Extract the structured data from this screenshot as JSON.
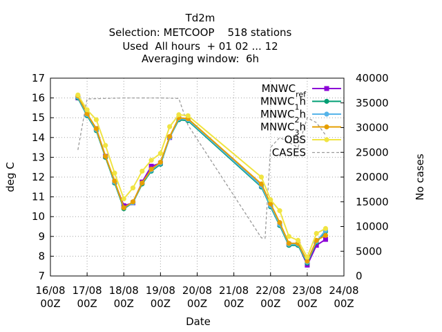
{
  "chart_data": {
    "type": "line",
    "title_lines": [
      "Td2m",
      "Selection: METCOOP    518 stations",
      "Used  All hours  + 01 02 ... 12",
      "Averaging window:  6h"
    ],
    "xlabel": "Date",
    "ylabel": "deg C",
    "y2label": "No cases",
    "x_ticks": [
      {
        "day": 0,
        "label": [
          "16/08",
          "00Z"
        ]
      },
      {
        "day": 1,
        "label": [
          "17/08",
          "00Z"
        ]
      },
      {
        "day": 2,
        "label": [
          "18/08",
          "00Z"
        ]
      },
      {
        "day": 3,
        "label": [
          "19/08",
          "00Z"
        ]
      },
      {
        "day": 4,
        "label": [
          "20/08",
          "00Z"
        ]
      },
      {
        "day": 5,
        "label": [
          "21/08",
          "00Z"
        ]
      },
      {
        "day": 6,
        "label": [
          "22/08",
          "00Z"
        ]
      },
      {
        "day": 7,
        "label": [
          "23/08",
          "00Z"
        ]
      },
      {
        "day": 8,
        "label": [
          "24/08",
          "00Z"
        ]
      }
    ],
    "xlim": [
      0,
      8
    ],
    "ylim": [
      7,
      17
    ],
    "y_ticks": [
      7,
      8,
      9,
      10,
      11,
      12,
      13,
      14,
      15,
      16,
      17
    ],
    "y2lim": [
      0,
      40000
    ],
    "y2_ticks": [
      0,
      5000,
      10000,
      15000,
      20000,
      25000,
      30000,
      35000,
      40000
    ],
    "grid": true,
    "legend_position": "top-right",
    "x": [
      0.75,
      1.0,
      1.25,
      1.5,
      1.75,
      2.0,
      2.25,
      2.5,
      2.75,
      3.0,
      3.25,
      3.5,
      3.75,
      5.75,
      6.0,
      6.25,
      6.5,
      6.75,
      7.0,
      7.25,
      7.5
    ],
    "series": [
      {
        "name": "MNWC",
        "sub": "ref",
        "color": "#8b00d6",
        "marker": "square",
        "axis": "y1",
        "values": [
          16.0,
          15.15,
          14.45,
          13.05,
          11.75,
          10.55,
          10.7,
          11.75,
          12.55,
          12.7,
          14.0,
          14.95,
          14.9,
          11.55,
          10.6,
          9.6,
          8.6,
          8.6,
          7.55,
          8.55,
          8.85
        ]
      },
      {
        "name": "MNWC",
        "sub": "1",
        "suffix": "h",
        "color": "#009e73",
        "marker": "circle",
        "axis": "y1",
        "values": [
          16.0,
          15.1,
          14.35,
          13.0,
          11.7,
          10.4,
          10.7,
          11.65,
          12.3,
          12.65,
          14.0,
          14.9,
          14.85,
          11.5,
          10.5,
          9.55,
          8.55,
          8.55,
          7.65,
          8.7,
          9.25
        ]
      },
      {
        "name": "MNWC",
        "sub": "2",
        "suffix": "h",
        "color": "#56b4e9",
        "marker": "circle",
        "axis": "y1",
        "values": [
          16.05,
          15.15,
          14.4,
          13.05,
          11.75,
          10.45,
          10.7,
          11.7,
          12.35,
          12.7,
          14.0,
          14.95,
          14.9,
          11.55,
          10.55,
          9.6,
          8.6,
          8.6,
          7.7,
          8.75,
          9.3
        ]
      },
      {
        "name": "MNWC",
        "sub": "3",
        "suffix": "h",
        "color": "#e69f00",
        "marker": "circle",
        "axis": "y1",
        "values": [
          16.1,
          15.2,
          14.45,
          13.05,
          11.8,
          10.45,
          10.75,
          11.7,
          12.4,
          12.75,
          14.05,
          15.0,
          14.95,
          11.65,
          10.65,
          9.7,
          8.65,
          8.65,
          7.75,
          8.8,
          9.05
        ]
      },
      {
        "name": "OBS",
        "color": "#f0e442",
        "marker": "circle",
        "axis": "y1",
        "values": [
          16.15,
          15.4,
          14.9,
          13.6,
          12.2,
          10.9,
          11.45,
          12.3,
          12.85,
          13.2,
          14.55,
          15.15,
          15.1,
          12.0,
          10.85,
          10.3,
          9.0,
          8.8,
          7.95,
          9.15,
          9.4
        ]
      },
      {
        "name": "CASES",
        "color": "#999999",
        "marker": "none",
        "dash": true,
        "axis": "y2",
        "x": [
          0.75,
          1.0,
          2.0,
          3.0,
          3.5,
          3.75,
          5.75,
          5.85,
          6.0,
          6.25,
          6.5,
          6.75,
          7.0,
          7.25,
          7.5
        ],
        "values": [
          25500,
          35800,
          36000,
          36000,
          35900,
          30500,
          7700,
          7600,
          26000,
          28000,
          27000,
          26000,
          32000,
          31000,
          28500
        ]
      }
    ]
  }
}
